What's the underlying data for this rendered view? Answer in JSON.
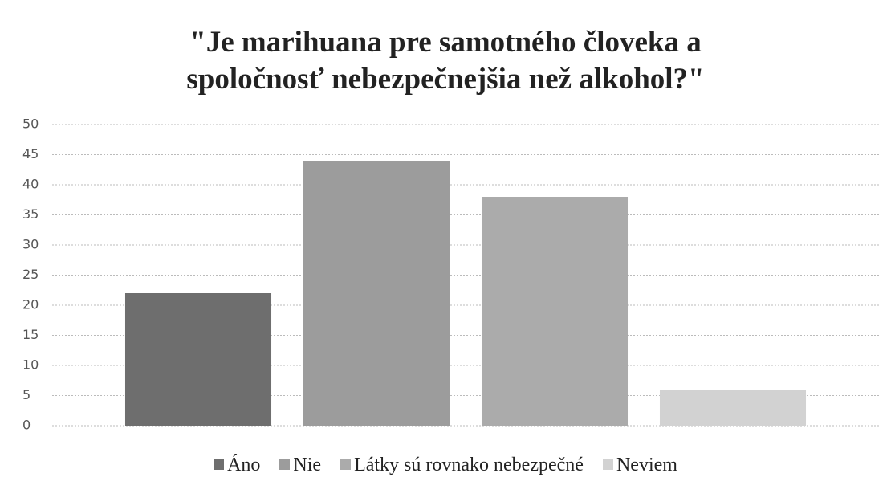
{
  "chart_data": {
    "type": "bar",
    "title": "\"Je marihuana pre samotného človeka a spoločnosť nebezpečnejšia než alkohol?\"",
    "categories": [
      "Áno",
      "Nie",
      "Látky sú rovnako nebezpečné",
      "Neviem"
    ],
    "values": [
      22,
      44,
      38,
      6
    ],
    "colors": [
      "#6e6e6e",
      "#9c9c9c",
      "#ababab",
      "#d2d2d2"
    ],
    "ylim": [
      0,
      50
    ],
    "yticks": [
      0,
      5,
      10,
      15,
      20,
      25,
      30,
      35,
      40,
      45,
      50
    ],
    "grid": true,
    "legend": "bottom"
  }
}
